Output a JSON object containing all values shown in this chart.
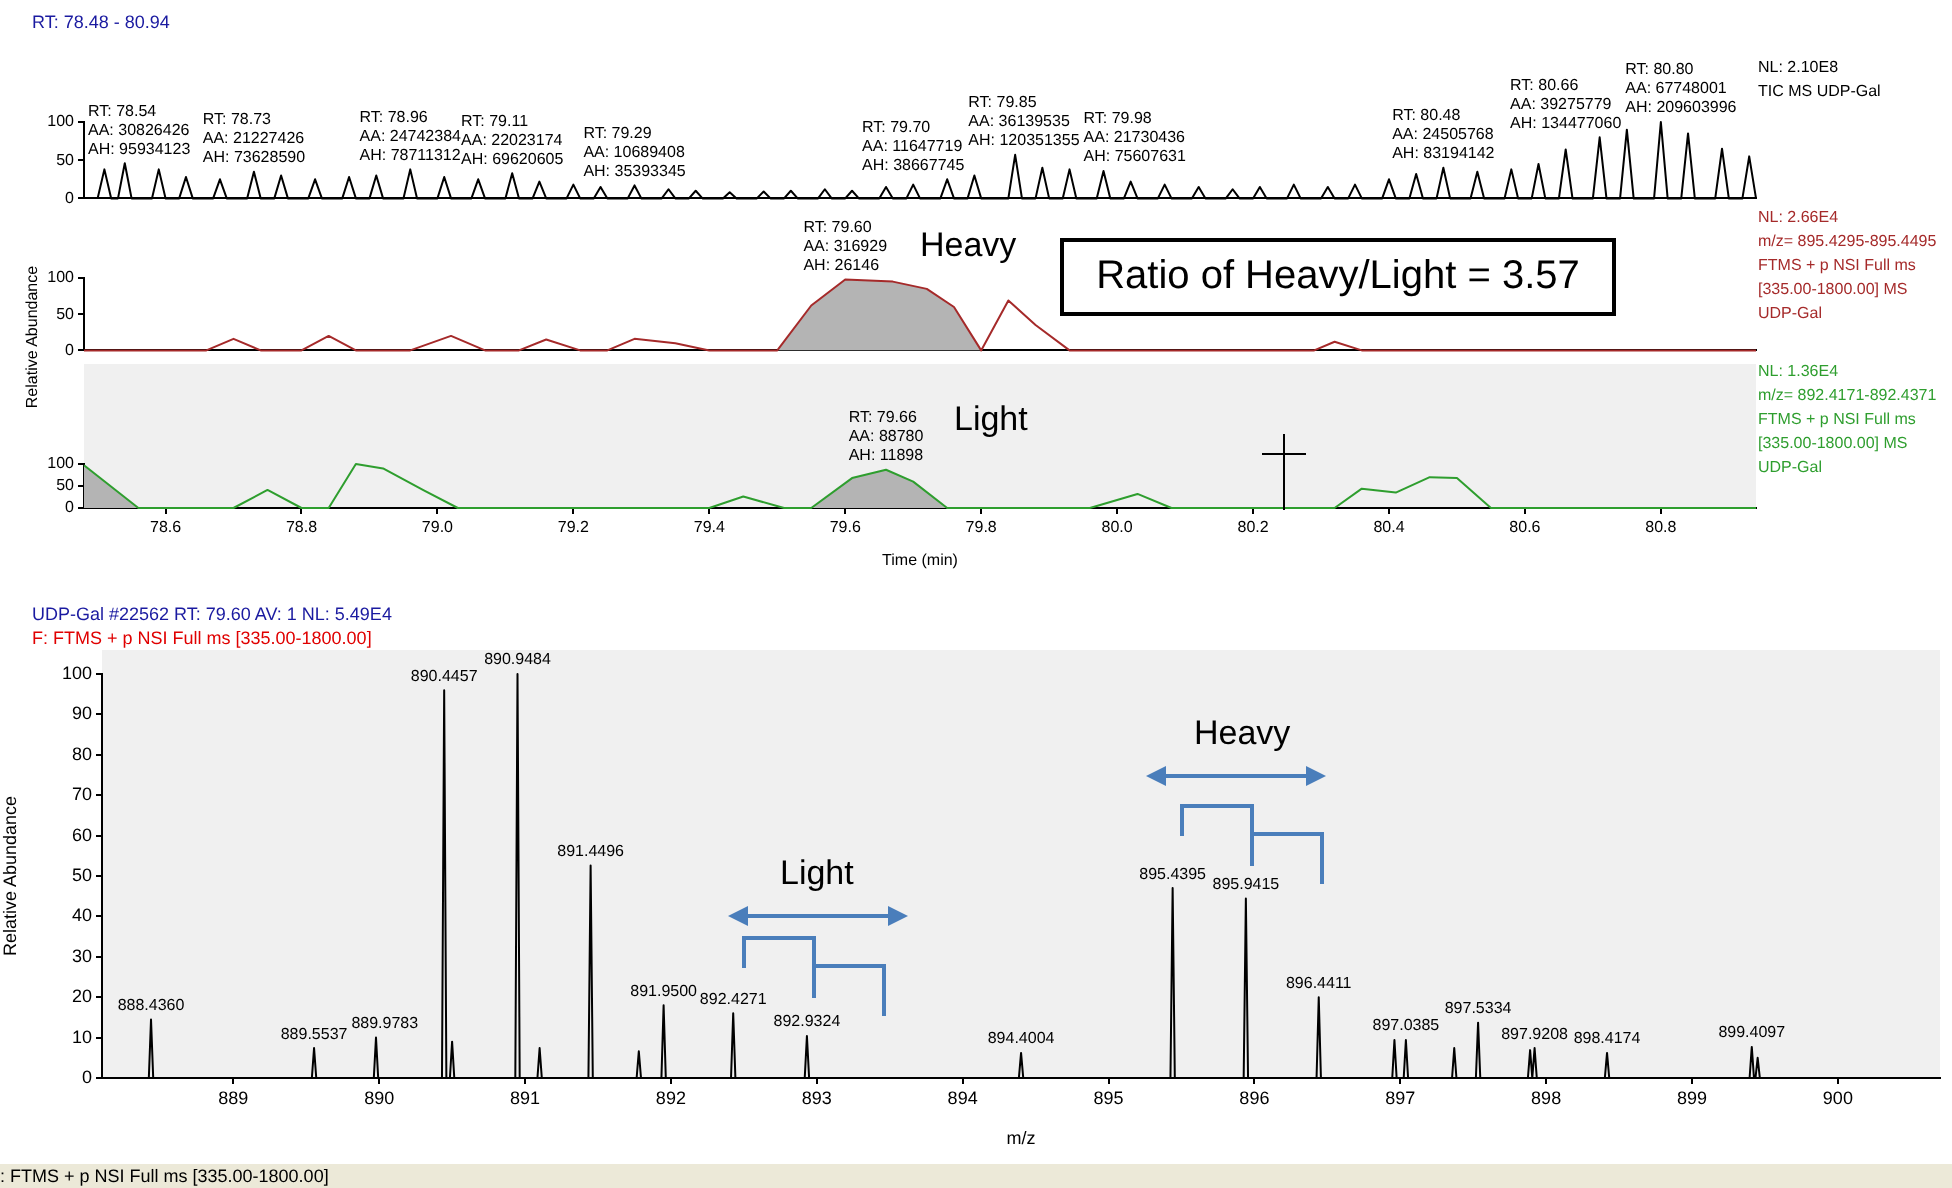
{
  "chart_data": [
    {
      "type": "line",
      "title": "RT: 78.48 - 80.94",
      "xlim": [
        78.48,
        80.94
      ],
      "ylim": [
        0,
        100
      ],
      "yticks": [
        0,
        50,
        100
      ],
      "tick_labels": "y",
      "series": [
        {
          "color": "#000000",
          "x": [
            78.5,
            78.51,
            78.52,
            78.53,
            78.54,
            78.55,
            78.58,
            78.59,
            78.6,
            78.62,
            78.63,
            78.64,
            78.67,
            78.68,
            78.69,
            78.72,
            78.73,
            78.74,
            78.76,
            78.77,
            78.78,
            78.81,
            78.82,
            78.83,
            78.86,
            78.87,
            78.88,
            78.9,
            78.91,
            78.92,
            78.95,
            78.96,
            78.97,
            79.0,
            79.01,
            79.02,
            79.05,
            79.06,
            79.07,
            79.1,
            79.11,
            79.12,
            79.14,
            79.15,
            79.16,
            79.19,
            79.2,
            79.21,
            79.23,
            79.24,
            79.25,
            79.28,
            79.29,
            79.3,
            79.33,
            79.34,
            79.35,
            79.37,
            79.38,
            79.39,
            79.42,
            79.43,
            79.44,
            79.47,
            79.48,
            79.49,
            79.51,
            79.52,
            79.53,
            79.56,
            79.57,
            79.58,
            79.6,
            79.61,
            79.62,
            79.65,
            79.66,
            79.67,
            79.69,
            79.7,
            79.71,
            79.74,
            79.75,
            79.76,
            79.78,
            79.79,
            79.8,
            79.84,
            79.85,
            79.86,
            79.88,
            79.89,
            79.9,
            79.92,
            79.93,
            79.94,
            79.97,
            79.98,
            79.99,
            80.01,
            80.02,
            80.03,
            80.06,
            80.07,
            80.08,
            80.11,
            80.12,
            80.13,
            80.16,
            80.17,
            80.18,
            80.2,
            80.21,
            80.22,
            80.25,
            80.26,
            80.27,
            80.3,
            80.31,
            80.32,
            80.34,
            80.35,
            80.36,
            80.39,
            80.4,
            80.41,
            80.43,
            80.44,
            80.45,
            80.47,
            80.48,
            80.49,
            80.52,
            80.53,
            80.54,
            80.57,
            80.58,
            80.59,
            80.61,
            80.62,
            80.63,
            80.65,
            80.66,
            80.67,
            80.7,
            80.71,
            80.72,
            80.74,
            80.75,
            80.76,
            80.79,
            80.8,
            80.81,
            80.83,
            80.84,
            80.85,
            80.88,
            80.89,
            80.9,
            80.92,
            80.93,
            80.94
          ],
          "values": [
            0,
            38,
            0,
            0,
            46,
            0,
            0,
            38,
            0,
            0,
            28,
            0,
            0,
            25,
            0,
            0,
            35,
            0,
            0,
            30,
            0,
            0,
            25,
            0,
            0,
            28,
            0,
            0,
            30,
            0,
            0,
            38,
            0,
            0,
            28,
            0,
            0,
            25,
            0,
            0,
            33,
            0,
            0,
            22,
            0,
            0,
            18,
            0,
            0,
            15,
            0,
            0,
            17,
            0,
            0,
            12,
            0,
            0,
            10,
            0,
            0,
            8,
            0,
            0,
            9,
            0,
            0,
            10,
            0,
            0,
            12,
            0,
            0,
            10,
            0,
            0,
            15,
            0,
            0,
            18,
            0,
            0,
            25,
            0,
            0,
            30,
            0,
            0,
            57,
            0,
            0,
            40,
            0,
            0,
            38,
            0,
            0,
            36,
            0,
            0,
            22,
            0,
            0,
            18,
            0,
            0,
            15,
            0,
            0,
            12,
            0,
            0,
            15,
            0,
            0,
            18,
            0,
            0,
            15,
            0,
            0,
            18,
            0,
            0,
            25,
            0,
            0,
            32,
            0,
            0,
            40,
            0,
            0,
            35,
            0,
            0,
            38,
            0,
            0,
            45,
            0,
            0,
            64,
            0,
            0,
            80,
            0,
            0,
            90,
            0,
            0,
            100,
            0,
            0,
            85,
            0,
            0,
            65,
            0,
            0,
            55,
            0
          ]
        }
      ],
      "annotations": [
        {
          "text": "RT: 78.54\nAA: 30826426\nAH: 95934123",
          "x": 78.54,
          "y": 46
        },
        {
          "text": "RT: 78.73\nAA: 21227426\nAH: 73628590",
          "x": 78.73,
          "y": 35
        },
        {
          "text": "RT: 78.96\nAA: 24742384\nAH: 78711312",
          "x": 78.96,
          "y": 38
        },
        {
          "text": "RT: 79.11\nAA: 22023174\nAH: 69620605",
          "x": 79.11,
          "y": 33
        },
        {
          "text": "RT: 79.29\nAA: 10689408\nAH: 35393345",
          "x": 79.29,
          "y": 17
        },
        {
          "text": "RT: 79.70\nAA: 11647719\nAH: 38667745",
          "x": 79.7,
          "y": 18
        },
        {
          "text": "RT: 79.85\nAA: 36139535\nAH: 120351355",
          "x": 79.85,
          "y": 57
        },
        {
          "text": "RT: 79.98\nAA: 21730436\nAH: 75607631",
          "x": 79.98,
          "y": 36
        },
        {
          "text": "RT: 80.48\nAA: 24505768\nAH: 83194142",
          "x": 80.48,
          "y": 40
        },
        {
          "text": "RT: 80.66\nAA: 39275779\nAH: 134477060",
          "x": 80.66,
          "y": 64
        },
        {
          "text": "RT: 80.80\nAA: 67748001\nAH: 209603996",
          "x": 80.8,
          "y": 100
        },
        "NL: 2.10E8",
        "TIC  MS  UDP-Gal"
      ]
    },
    {
      "type": "line",
      "title": "Ratio of Heavy/Light = 3.57",
      "ylabel": "Relative Abundance",
      "xlim": [
        78.48,
        80.94
      ],
      "ylim": [
        0,
        100
      ],
      "yticks": [
        0,
        50,
        100
      ],
      "tick_labels": "y",
      "series": [
        {
          "color": "#a52a2a",
          "x": [
            78.48,
            78.66,
            78.7,
            78.74,
            78.8,
            78.84,
            78.88,
            78.96,
            79.02,
            79.07,
            79.12,
            79.16,
            79.21,
            79.25,
            79.29,
            79.35,
            79.4,
            79.5,
            79.55,
            79.6,
            79.67,
            79.72,
            79.76,
            79.8,
            79.84,
            79.88,
            79.93,
            80.29,
            80.32,
            80.36,
            80.94
          ],
          "values": [
            0,
            0,
            16,
            0,
            0,
            20,
            0,
            0,
            20,
            0,
            0,
            15,
            0,
            0,
            16,
            10,
            0,
            0,
            62,
            98,
            95,
            85,
            60,
            0,
            69,
            35,
            0,
            0,
            12,
            0,
            0
          ]
        },
        {
          "type": "area",
          "color": "#b4b4b4",
          "x": [
            79.5,
            79.55,
            79.6,
            79.67,
            79.72,
            79.76,
            79.8
          ],
          "values": [
            0,
            62,
            98,
            95,
            85,
            60,
            0
          ]
        }
      ],
      "annotations": [
        {
          "text": "RT: 79.60\nAA: 316929\nAH: 26146",
          "x": 79.6,
          "y": 98
        },
        "Heavy",
        "NL: 2.66E4",
        "m/z= 895.4295-895.4495",
        "FTMS + p NSI Full ms",
        "[335.00-1800.00]  MS",
        "UDP-Gal"
      ]
    },
    {
      "type": "line",
      "xlabel": "Time (min)",
      "xlim": [
        78.48,
        80.94
      ],
      "ylim": [
        0,
        100
      ],
      "yticks": [
        0,
        50,
        100
      ],
      "xticks": [
        78.6,
        78.8,
        {
          "value": 79,
          "label": "79.0"
        },
        79.2,
        79.4,
        79.6,
        79.8,
        {
          "value": 80,
          "label": "80.0"
        },
        80.2,
        80.4,
        80.6,
        80.8
      ],
      "series": [
        {
          "color": "#2e9e2e",
          "x": [
            78.48,
            78.56,
            78.7,
            78.75,
            78.8,
            78.84,
            78.88,
            78.92,
            78.98,
            79.03,
            79.4,
            79.45,
            79.51,
            79.55,
            79.61,
            79.66,
            79.7,
            79.75,
            79.96,
            80.03,
            80.08,
            80.32,
            80.36,
            80.41,
            80.46,
            80.5,
            80.55,
            80.94
          ],
          "values": [
            97,
            0,
            0,
            41,
            0,
            0,
            100,
            90,
            40,
            0,
            0,
            26,
            0,
            0,
            68,
            87,
            60,
            0,
            0,
            32,
            0,
            0,
            44,
            35,
            70,
            68,
            0,
            0
          ]
        },
        {
          "type": "area",
          "color": "#b4b4b4",
          "x": [
            78.48,
            78.56
          ],
          "values": [
            97,
            0
          ]
        },
        {
          "type": "area",
          "color": "#b4b4b4",
          "x": [
            79.55,
            79.61,
            79.66,
            79.7,
            79.75
          ],
          "values": [
            0,
            68,
            87,
            60,
            0
          ]
        }
      ],
      "annotations": [
        {
          "text": "RT: 79.66\nAA: 88780\nAH: 11898",
          "x": 79.66,
          "y": 87
        },
        "Light",
        "NL: 1.36E4",
        "m/z= 892.4171-892.4371",
        "FTMS + p NSI Full ms",
        "[335.00-1800.00]  MS",
        "UDP-Gal"
      ]
    },
    {
      "type": "line",
      "title": "UDP-Gal #22562  RT: 79.60  AV: 1  NL: 5.49E4",
      "subtitle": "F: FTMS + p NSI Full ms [335.00-1800.00]",
      "xlabel": "m/z",
      "ylabel": "Relative Abundance",
      "xlim": [
        888.1,
        900.7
      ],
      "ylim": [
        0,
        100
      ],
      "xticks": [
        889,
        890,
        891,
        892,
        893,
        894,
        895,
        896,
        897,
        898,
        899,
        900
      ],
      "yticks": [
        0,
        10,
        20,
        30,
        40,
        50,
        60,
        70,
        80,
        90,
        100
      ],
      "series": [
        {
          "color": "#000000",
          "x": [
            888.421,
            888.436,
            888.451,
            889.5387,
            889.5537,
            889.5687,
            889.9633,
            889.9783,
            889.9933,
            890.4307,
            890.4457,
            890.4607,
            890.485,
            890.5,
            890.515,
            890.9334,
            890.9484,
            890.9634,
            891.085,
            891.1,
            891.115,
            891.4346,
            891.4496,
            891.4646,
            891.765,
            891.78,
            891.795,
            891.935,
            891.95,
            891.965,
            892.4121,
            892.4271,
            892.4421,
            892.9174,
            892.9324,
            892.9474,
            894.3854,
            894.4004,
            894.4154,
            895.4245,
            895.4395,
            895.4545,
            895.9265,
            895.9415,
            895.9565,
            896.4261,
            896.4411,
            896.4561,
            896.945,
            896.96,
            896.975,
            897.0235,
            897.0385,
            897.0535,
            897.355,
            897.37,
            897.385,
            897.5184,
            897.5334,
            897.5484,
            897.875,
            897.89,
            897.905,
            897.9058,
            897.9208,
            897.9358,
            898.4024,
            898.4174,
            898.4324,
            899.3947,
            899.4097,
            899.4247,
            899.435,
            899.45,
            899.465
          ],
          "values": [
            0,
            14.5,
            0,
            0,
            7.4,
            0,
            0,
            10,
            0,
            0,
            96,
            0,
            0,
            9,
            0,
            0,
            100,
            0,
            0,
            7.4,
            0,
            0,
            52.6,
            0,
            0,
            6.6,
            0,
            0,
            18,
            0,
            0,
            16,
            0,
            0,
            10.4,
            0,
            0,
            6.2,
            0,
            0,
            47,
            0,
            0,
            44.4,
            0,
            0,
            20,
            0,
            0,
            9.4,
            0,
            0,
            9.4,
            0,
            0,
            7.4,
            0,
            0,
            13.7,
            0,
            0,
            6.9,
            0,
            0,
            7.4,
            0,
            0,
            6.2,
            0,
            0,
            7.7,
            0,
            0,
            5,
            0
          ]
        }
      ],
      "annotations": [
        {
          "text": "888.4360",
          "x": 888.436,
          "y": 14.5
        },
        {
          "text": "889.5537",
          "x": 889.5537,
          "y": 7.4
        },
        {
          "text": "889.9783",
          "x": 889.9783,
          "y": 10
        },
        {
          "text": "890.4457",
          "x": 890.4457,
          "y": 96
        },
        {
          "text": "890.9484",
          "x": 890.9484,
          "y": 100
        },
        {
          "text": "891.4496",
          "x": 891.4496,
          "y": 52.6
        },
        {
          "text": "891.9500",
          "x": 891.95,
          "y": 18
        },
        {
          "text": "892.4271",
          "x": 892.4271,
          "y": 16
        },
        {
          "text": "892.9324",
          "x": 892.9324,
          "y": 10.4
        },
        {
          "text": "894.4004",
          "x": 894.4004,
          "y": 6.2
        },
        {
          "text": "895.4395",
          "x": 895.4395,
          "y": 47
        },
        {
          "text": "895.9415",
          "x": 895.9415,
          "y": 44.4
        },
        {
          "text": "896.4411",
          "x": 896.4411,
          "y": 20
        },
        {
          "text": "897.0385",
          "x": 897.0385,
          "y": 9.4
        },
        {
          "text": "897.5334",
          "x": 897.5334,
          "y": 13.7
        },
        {
          "text": "897.9208",
          "x": 897.9208,
          "y": 7.4
        },
        {
          "text": "898.4174",
          "x": 898.4174,
          "y": 6.2
        },
        {
          "text": "899.4097",
          "x": 899.4097,
          "y": 7.7
        },
        ": FTMS + p NSI Full ms [335.00-1800.00]",
        "Light",
        "Heavy"
      ]
    }
  ]
}
